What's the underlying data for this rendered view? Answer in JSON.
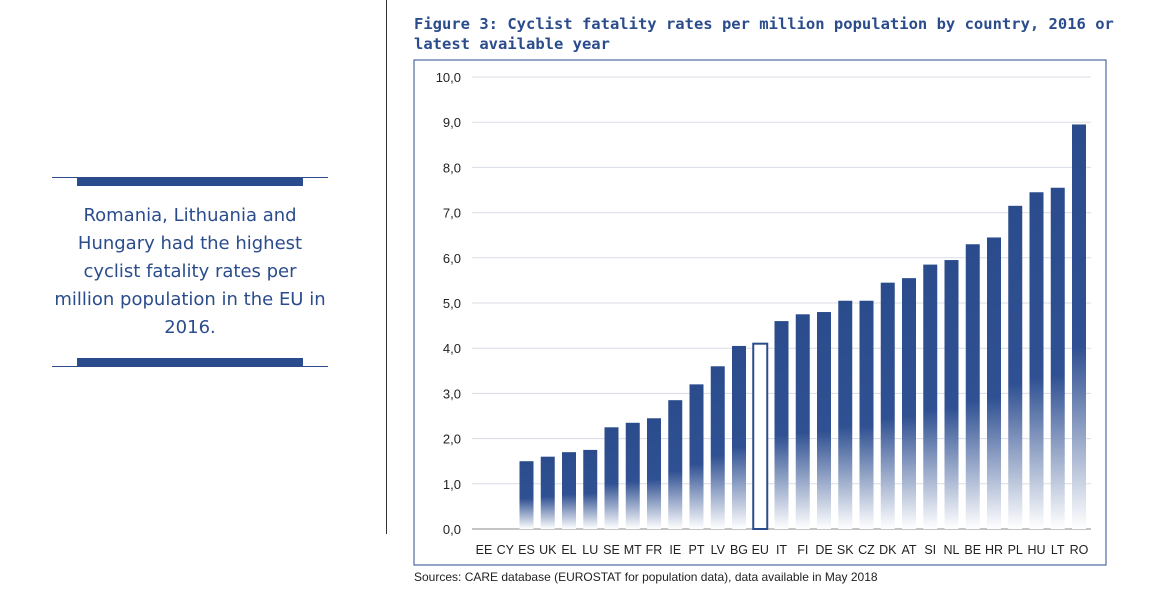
{
  "colors": {
    "accent": "#2b4c8c",
    "bar": "#2b4c8c",
    "grid": "#d9dde6"
  },
  "callout": {
    "text": "Romania, Lithuania and Hungary had the highest cyclist fatality rates per million population in the EU in 2016."
  },
  "source_note": "Sources: CARE database (EUROSTAT for population data), data available in May 2018",
  "chart_data": {
    "type": "bar",
    "title": "Figure 3: Cyclist fatality rates per million population by country, 2016 or latest available year",
    "xlabel": "",
    "ylabel": "",
    "ylim": [
      0,
      10
    ],
    "yticks": [
      "0,0",
      "1,0",
      "2,0",
      "3,0",
      "4,0",
      "5,0",
      "6,0",
      "7,0",
      "8,0",
      "9,0",
      "10,0"
    ],
    "categories": [
      "EE",
      "CY",
      "ES",
      "UK",
      "EL",
      "LU",
      "SE",
      "MT",
      "FR",
      "IE",
      "PT",
      "LV",
      "BG",
      "EU",
      "IT",
      "FI",
      "DE",
      "SK",
      "CZ",
      "DK",
      "AT",
      "SI",
      "NL",
      "BE",
      "HR",
      "PL",
      "HU",
      "LT",
      "RO"
    ],
    "values": [
      0,
      0,
      1.5,
      1.6,
      1.7,
      1.75,
      2.25,
      2.35,
      2.45,
      2.85,
      3.2,
      3.6,
      4.05,
      4.1,
      4.6,
      4.75,
      4.8,
      5.05,
      5.05,
      5.45,
      5.55,
      5.85,
      5.95,
      6.3,
      6.45,
      7.15,
      7.45,
      7.55,
      8.95
    ],
    "highlight": [
      "EU"
    ],
    "grid": true,
    "legend": "none"
  }
}
